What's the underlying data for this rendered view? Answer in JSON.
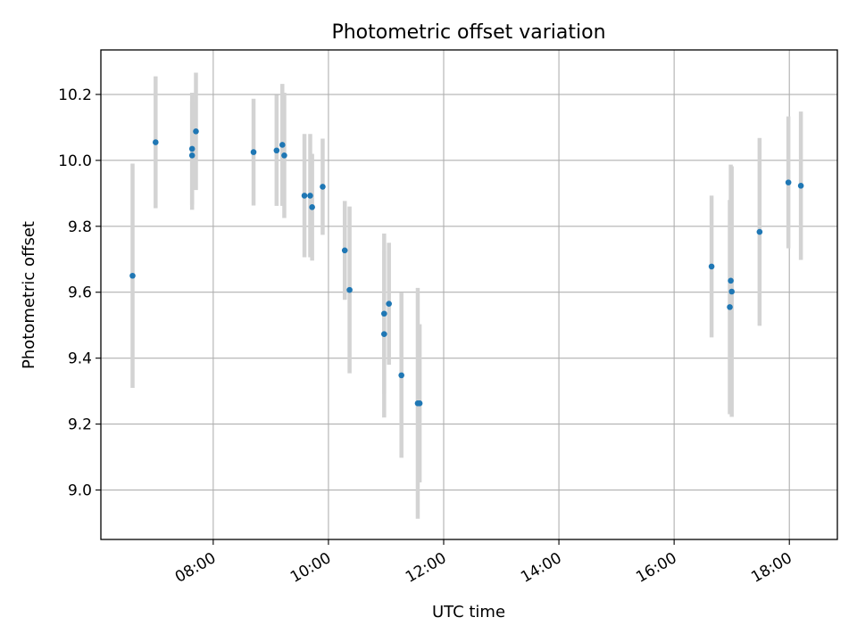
{
  "chart_data": {
    "type": "scatter",
    "title": "Photometric offset variation",
    "xlabel": "UTC time",
    "ylabel": "Photometric offset",
    "grid": true,
    "xlim": [
      "06:03",
      "18:50"
    ],
    "ylim": [
      8.85,
      10.335
    ],
    "x_ticks": [
      "08:00",
      "10:00",
      "12:00",
      "14:00",
      "16:00",
      "18:00"
    ],
    "y_ticks": [
      "9.0",
      "9.2",
      "9.4",
      "9.6",
      "9.8",
      "10.0",
      "10.2"
    ],
    "colors": {
      "point": "#1f77b4",
      "error_bar": "#d3d3d3",
      "grid": "#b0b0b0"
    },
    "points": [
      {
        "t": "06:36",
        "y": 9.65,
        "err": 0.34
      },
      {
        "t": "07:00",
        "y": 10.055,
        "err": 0.2
      },
      {
        "t": "07:38",
        "y": 10.035,
        "err": 0.17
      },
      {
        "t": "07:38",
        "y": 10.015,
        "err": 0.165
      },
      {
        "t": "07:42",
        "y": 10.088,
        "err": 0.178
      },
      {
        "t": "08:42",
        "y": 10.025,
        "err": 0.162
      },
      {
        "t": "09:06",
        "y": 10.03,
        "err": 0.168
      },
      {
        "t": "09:12",
        "y": 10.047,
        "err": 0.185
      },
      {
        "t": "09:14",
        "y": 10.015,
        "err": 0.19
      },
      {
        "t": "09:35",
        "y": 9.893,
        "err": 0.187
      },
      {
        "t": "09:41",
        "y": 9.893,
        "err": 0.187
      },
      {
        "t": "09:43",
        "y": 9.858,
        "err": 0.162
      },
      {
        "t": "09:54",
        "y": 9.92,
        "err": 0.146
      },
      {
        "t": "10:17",
        "y": 9.727,
        "err": 0.15
      },
      {
        "t": "10:22",
        "y": 9.607,
        "err": 0.253
      },
      {
        "t": "10:58",
        "y": 9.535,
        "err": 0.243
      },
      {
        "t": "10:58",
        "y": 9.473,
        "err": 0.253
      },
      {
        "t": "11:03",
        "y": 9.565,
        "err": 0.185
      },
      {
        "t": "11:16",
        "y": 9.348,
        "err": 0.25
      },
      {
        "t": "11:33",
        "y": 9.263,
        "err": 0.35
      },
      {
        "t": "11:35",
        "y": 9.263,
        "err": 0.24
      },
      {
        "t": "16:39",
        "y": 9.678,
        "err": 0.215
      },
      {
        "t": "16:58",
        "y": 9.555,
        "err": 0.325
      },
      {
        "t": "16:59",
        "y": 9.635,
        "err": 0.352
      },
      {
        "t": "17:00",
        "y": 9.602,
        "err": 0.38
      },
      {
        "t": "17:29",
        "y": 9.783,
        "err": 0.285
      },
      {
        "t": "17:59",
        "y": 9.933,
        "err": 0.2
      },
      {
        "t": "18:12",
        "y": 9.923,
        "err": 0.225
      }
    ]
  }
}
